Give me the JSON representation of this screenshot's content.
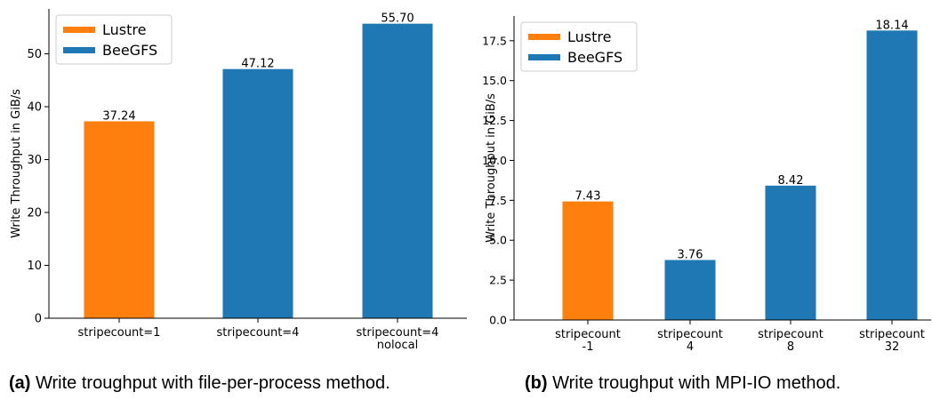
{
  "chart_data": [
    {
      "type": "bar",
      "id": "a",
      "categories": [
        "stripecount=1",
        "stripecount=4",
        "stripecount=4\nnolocal"
      ],
      "values": [
        37.24,
        47.12,
        55.7
      ],
      "value_labels": [
        "37.24",
        "47.12",
        "55.70"
      ],
      "bar_series": [
        "Lustre",
        "BeeGFS",
        "BeeGFS"
      ],
      "legend": [
        {
          "name": "Lustre",
          "color": "#ff7f0e"
        },
        {
          "name": "BeeGFS",
          "color": "#1f77b4"
        }
      ],
      "legend_placement": "top-left",
      "ylabel": "Write Throughput in GiB/s",
      "xlabel": "",
      "ylim": [
        0,
        58.5
      ],
      "yticks": [
        0,
        10,
        20,
        30,
        40,
        50
      ],
      "ytick_labels": [
        "0",
        "10",
        "20",
        "30",
        "40",
        "50"
      ],
      "grid": false
    },
    {
      "type": "bar",
      "id": "b",
      "categories": [
        "stripecount\n-1",
        "stripecount\n4",
        "stripecount\n8",
        "stripecount\n32"
      ],
      "values": [
        7.43,
        3.76,
        8.42,
        18.14
      ],
      "value_labels": [
        "7.43",
        "3.76",
        "8.42",
        "18.14"
      ],
      "bar_series": [
        "Lustre",
        "BeeGFS",
        "BeeGFS",
        "BeeGFS"
      ],
      "legend": [
        {
          "name": "Lustre",
          "color": "#ff7f0e"
        },
        {
          "name": "BeeGFS",
          "color": "#1f77b4"
        }
      ],
      "legend_placement": "top-left",
      "ylabel": "Write Throughput in GiB/s",
      "xlabel": "",
      "ylim": [
        0,
        19.05
      ],
      "yticks": [
        0,
        2.5,
        5,
        7.5,
        10,
        12.5,
        15,
        17.5
      ],
      "ytick_labels": [
        "0.0",
        "2.5",
        "5.0",
        "7.5",
        "10.0",
        "12.5",
        "15.0",
        "17.5"
      ],
      "grid": false
    }
  ],
  "captions": {
    "a": {
      "tag": "(a)",
      "text": " Write troughput with file-per-process method."
    },
    "b": {
      "tag": "(b)",
      "text": " Write troughput with MPI-IO method."
    }
  }
}
